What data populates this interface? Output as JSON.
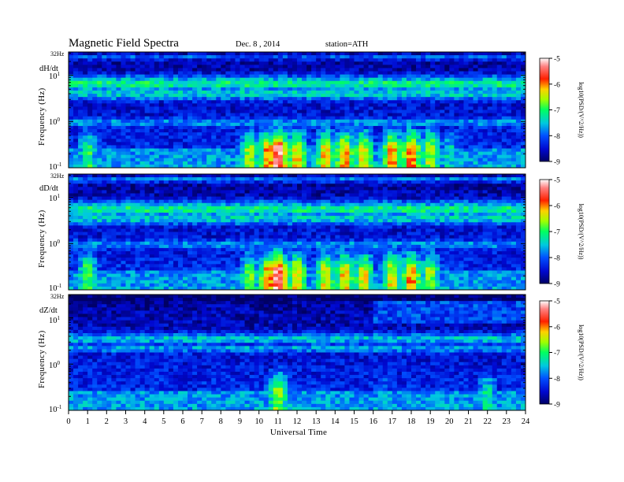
{
  "header": {
    "title": "Magnetic  Field  Spectra",
    "date": "Dec. 8  , 2014",
    "station": "station=ATH"
  },
  "colorbar": {
    "label": "log10(PSD/(V^2/Hz))",
    "ticks": [
      "-5",
      "-6",
      "-7",
      "-8",
      "-9"
    ]
  },
  "xaxis": {
    "label": "Universal Time",
    "ticks": [
      "0",
      "1",
      "2",
      "3",
      "4",
      "5",
      "6",
      "7",
      "8",
      "9",
      "10",
      "11",
      "12",
      "13",
      "14",
      "15",
      "16",
      "17",
      "18",
      "19",
      "20",
      "21",
      "22",
      "23",
      "24"
    ]
  },
  "colors": {
    "background_low": "#00188a",
    "mid": "#00c8c8",
    "high": "#ff0000",
    "peak": "#ffffff"
  },
  "chart_data": [
    {
      "type": "heatmap",
      "panel": "dH/dt",
      "ylabel": "Frequency (Hz)",
      "ylim_label_top": "32Hz",
      "y_ticks": [
        "10^1",
        "10^0",
        "10^-1"
      ],
      "xlim": [
        0,
        24
      ],
      "clim": [
        -9,
        -5
      ],
      "bands": [
        {
          "freq_hz": 26,
          "level": -7.9
        },
        {
          "freq_hz": 6.5,
          "level": -7.0
        },
        {
          "freq_hz": 4.0,
          "level": -7.3
        },
        {
          "freq_hz": 0.95,
          "level": -7.6
        }
      ],
      "activity": [
        {
          "ut": 1.0,
          "peak": -7.0
        },
        {
          "ut": 9.5,
          "peak": -6.6
        },
        {
          "ut": 10.5,
          "peak": -6.0
        },
        {
          "ut": 11.0,
          "peak": -5.2
        },
        {
          "ut": 12.0,
          "peak": -6.2
        },
        {
          "ut": 13.5,
          "peak": -6.2
        },
        {
          "ut": 14.5,
          "peak": -6.1
        },
        {
          "ut": 15.5,
          "peak": -6.3
        },
        {
          "ut": 17.0,
          "peak": -6.1
        },
        {
          "ut": 18.0,
          "peak": -5.9
        },
        {
          "ut": 19.0,
          "peak": -6.5
        },
        {
          "ut": 20.0,
          "peak": -7.4
        }
      ]
    },
    {
      "type": "heatmap",
      "panel": "dD/dt",
      "ylabel": "Frequency (Hz)",
      "ylim_label_top": "32Hz",
      "y_ticks": [
        "10^1",
        "10^0",
        "10^-1"
      ],
      "xlim": [
        0,
        24
      ],
      "clim": [
        -9,
        -5
      ],
      "bands": [
        {
          "freq_hz": 26,
          "level": -7.8
        },
        {
          "freq_hz": 5.5,
          "level": -7.0
        },
        {
          "freq_hz": 3.5,
          "level": -7.3
        },
        {
          "freq_hz": 0.95,
          "level": -7.6
        }
      ],
      "activity": [
        {
          "ut": 1.0,
          "peak": -6.8
        },
        {
          "ut": 9.5,
          "peak": -6.8
        },
        {
          "ut": 10.5,
          "peak": -6.0
        },
        {
          "ut": 11.0,
          "peak": -5.2
        },
        {
          "ut": 12.0,
          "peak": -6.2
        },
        {
          "ut": 13.5,
          "peak": -6.3
        },
        {
          "ut": 14.5,
          "peak": -6.2
        },
        {
          "ut": 15.5,
          "peak": -6.3
        },
        {
          "ut": 17.0,
          "peak": -6.3
        },
        {
          "ut": 18.0,
          "peak": -6.0
        },
        {
          "ut": 19.0,
          "peak": -6.6
        }
      ]
    },
    {
      "type": "heatmap",
      "panel": "dZ/dt",
      "ylabel": "Frequency (Hz)",
      "ylim_label_top": "32Hz",
      "y_ticks": [
        "10^1",
        "10^0",
        "10^-1"
      ],
      "xlim": [
        0,
        24
      ],
      "clim": [
        -9,
        -5
      ],
      "bands": [
        {
          "freq_hz": 26,
          "level": -8.9
        },
        {
          "freq_hz": 3.5,
          "level": -7.4
        },
        {
          "freq_hz": 2.2,
          "level": -7.6
        }
      ],
      "activity": [
        {
          "ut": 11.0,
          "peak": -6.6
        },
        {
          "ut": 16.5,
          "peak": -7.8
        },
        {
          "ut": 22.0,
          "peak": -7.2
        }
      ]
    }
  ]
}
